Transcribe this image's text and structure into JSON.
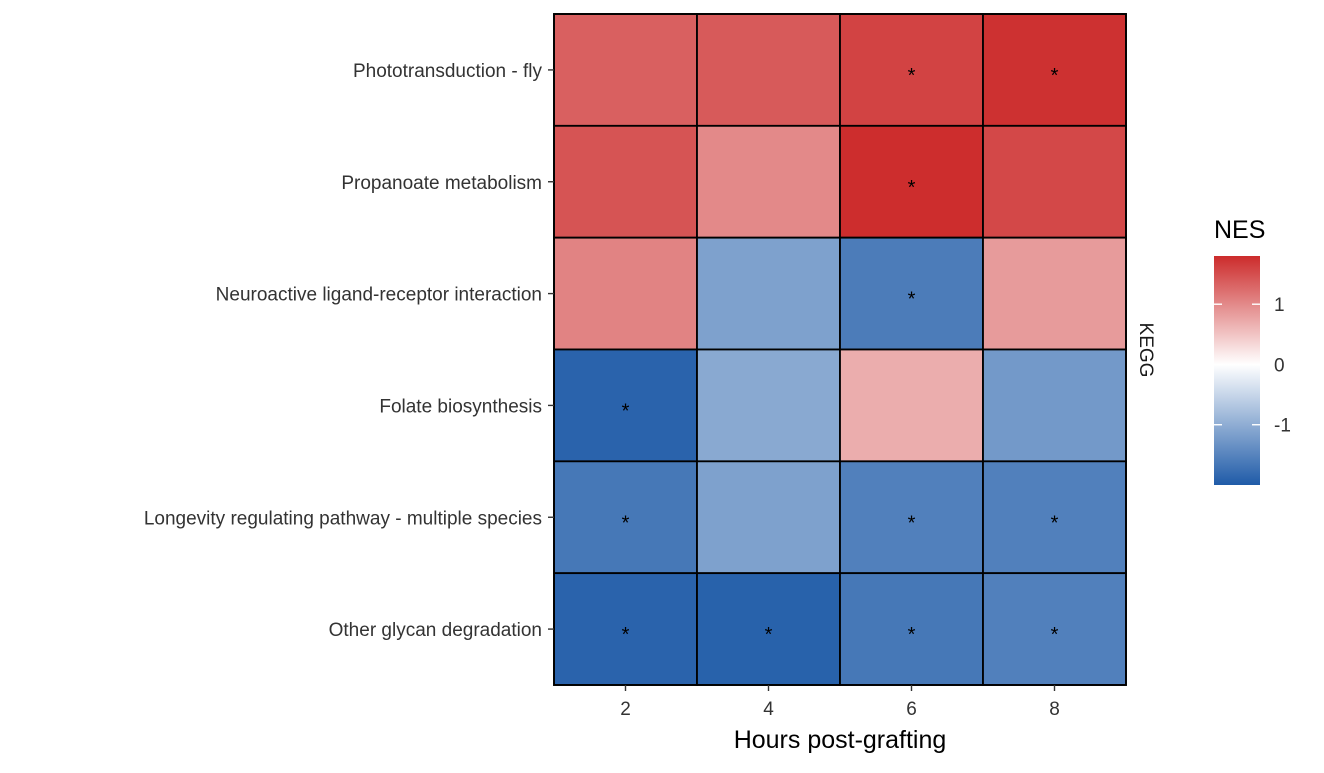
{
  "chart_data": {
    "type": "heatmap",
    "title": "",
    "xlabel": "Hours post-grafting",
    "ylabel": "",
    "facet_label": "KEGG",
    "x": [
      "2",
      "4",
      "6",
      "8"
    ],
    "y": [
      "Phototransduction - fly",
      "Propanoate metabolism",
      "Neuroactive ligand-receptor interaction",
      "Folate biosynthesis",
      "Longevity regulating pathway - multiple species",
      "Other glycan degradation"
    ],
    "values": [
      [
        1.35,
        1.4,
        1.6,
        1.75
      ],
      [
        1.45,
        1.0,
        1.78,
        1.55
      ],
      [
        1.05,
        -1.15,
        -1.6,
        0.85
      ],
      [
        -1.9,
        -1.05,
        0.7,
        -1.25
      ],
      [
        -1.65,
        -1.15,
        -1.55,
        -1.55
      ],
      [
        -1.9,
        -1.92,
        -1.65,
        -1.55
      ]
    ],
    "significant": [
      [
        false,
        false,
        true,
        true
      ],
      [
        false,
        false,
        true,
        false
      ],
      [
        false,
        false,
        true,
        false
      ],
      [
        true,
        false,
        false,
        false
      ],
      [
        true,
        false,
        true,
        true
      ],
      [
        true,
        true,
        true,
        true
      ]
    ],
    "significance_marker": "*",
    "legend": {
      "title": "NES",
      "ticks": [
        "1",
        "0",
        "-1"
      ],
      "tick_values": [
        1,
        0,
        -1
      ],
      "range": [
        -2,
        1.8
      ],
      "low_color": "#1f5ba8",
      "mid_color": "#ffffff",
      "high_color": "#cc2b2b",
      "placement": "right"
    },
    "grid": false
  }
}
